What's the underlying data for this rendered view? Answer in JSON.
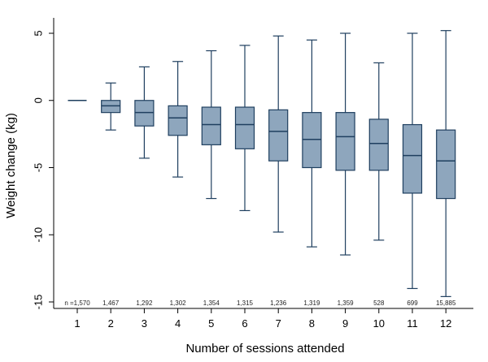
{
  "chart_data": {
    "type": "boxplot",
    "title": "",
    "xlabel": "Number of sessions attended",
    "ylabel": "Weight change (kg)",
    "ylim": [
      -15.5,
      6
    ],
    "yticks": [
      5,
      0,
      -5,
      -10,
      -15
    ],
    "grid": false,
    "categories": [
      "1",
      "2",
      "3",
      "4",
      "5",
      "6",
      "7",
      "8",
      "9",
      "10",
      "11",
      "12"
    ],
    "n_labels": [
      "n =1,570",
      "1,467",
      "1,292",
      "1,302",
      "1,354",
      "1,315",
      "1,236",
      "1,319",
      "1,359",
      "528",
      "699",
      "15,885"
    ],
    "boxes": [
      {
        "whisker_low": 0.0,
        "q1": 0.0,
        "median": 0.0,
        "q3": 0.0,
        "whisker_high": 0.0
      },
      {
        "whisker_low": -2.2,
        "q1": -0.9,
        "median": -0.4,
        "q3": 0.0,
        "whisker_high": 1.3
      },
      {
        "whisker_low": -4.3,
        "q1": -1.9,
        "median": -0.9,
        "q3": 0.0,
        "whisker_high": 2.5
      },
      {
        "whisker_low": -5.7,
        "q1": -2.6,
        "median": -1.3,
        "q3": -0.4,
        "whisker_high": 2.9
      },
      {
        "whisker_low": -7.3,
        "q1": -3.3,
        "median": -1.8,
        "q3": -0.5,
        "whisker_high": 3.7
      },
      {
        "whisker_low": -8.2,
        "q1": -3.6,
        "median": -1.8,
        "q3": -0.5,
        "whisker_high": 4.1
      },
      {
        "whisker_low": -9.8,
        "q1": -4.5,
        "median": -2.3,
        "q3": -0.7,
        "whisker_high": 4.8
      },
      {
        "whisker_low": -10.9,
        "q1": -5.0,
        "median": -2.9,
        "q3": -0.9,
        "whisker_high": 4.5
      },
      {
        "whisker_low": -11.5,
        "q1": -5.2,
        "median": -2.7,
        "q3": -0.9,
        "whisker_high": 5.0
      },
      {
        "whisker_low": -10.4,
        "q1": -5.2,
        "median": -3.2,
        "q3": -1.4,
        "whisker_high": 2.8
      },
      {
        "whisker_low": -14.0,
        "q1": -6.9,
        "median": -4.1,
        "q3": -1.8,
        "whisker_high": 5.0
      },
      {
        "whisker_low": -14.6,
        "q1": -7.3,
        "median": -4.5,
        "q3": -2.2,
        "whisker_high": 5.2
      }
    ],
    "colors": {
      "box_fill": "#8ea6bd",
      "box_stroke": "#1f3f5f",
      "axis": "#000000"
    }
  }
}
